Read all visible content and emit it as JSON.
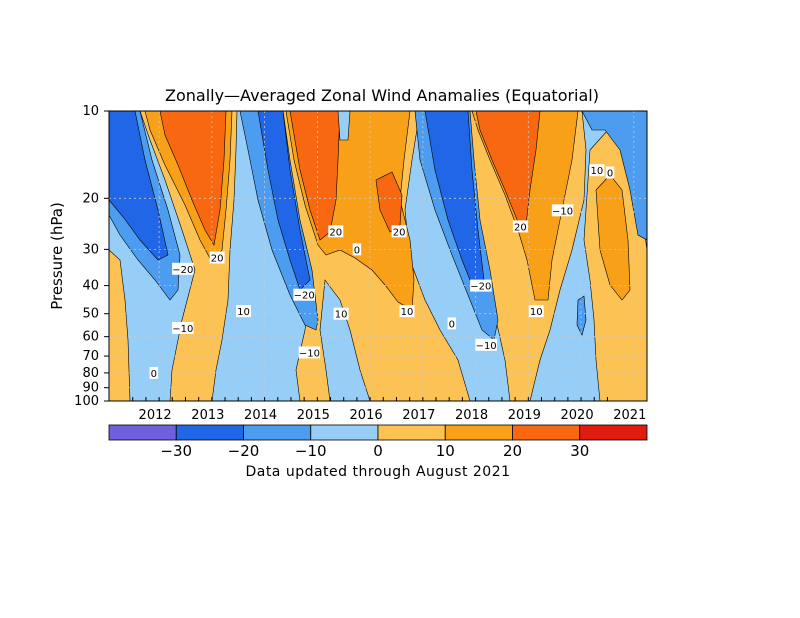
{
  "chart_data": {
    "type": "heatmap",
    "title": "Zonally—Averaged Zonal Wind Anamalies (Equatorial)",
    "ylabel": "Pressure (hPa)",
    "xlabel": "",
    "y_scale": "log",
    "y_reversed": true,
    "ylim": [
      100,
      10
    ],
    "y_ticks": [
      "10",
      "20",
      "30",
      "40",
      "50",
      "60",
      "70",
      "80",
      "90",
      "100"
    ],
    "x_ticks": [
      "2012",
      "2013",
      "2014",
      "2015",
      "2016",
      "2017",
      "2018",
      "2019",
      "2020",
      "2021"
    ],
    "colorbar": {
      "levels": [
        -40,
        -30,
        -20,
        -10,
        0,
        10,
        20,
        30,
        40
      ],
      "tick_labels": [
        "−30",
        "−20",
        "−10",
        "0",
        "10",
        "20",
        "30"
      ],
      "colors": [
        "#7060e0",
        "#2266e8",
        "#4c9cf0",
        "#96cef8",
        "#fcc354",
        "#f8a018",
        "#f86810",
        "#e01c10"
      ]
    },
    "contour_labels": [
      {
        "text": "−20",
        "year": 2012.95,
        "p": 35
      },
      {
        "text": "−10",
        "year": 2012.95,
        "p": 56
      },
      {
        "text": "0",
        "year": 2012.4,
        "p": 80
      },
      {
        "text": "20",
        "year": 2013.6,
        "p": 32
      },
      {
        "text": "10",
        "year": 2014.1,
        "p": 49
      },
      {
        "text": "−20",
        "year": 2015.25,
        "p": 43
      },
      {
        "text": "−10",
        "year": 2015.35,
        "p": 68
      },
      {
        "text": "20",
        "year": 2015.85,
        "p": 26
      },
      {
        "text": "10",
        "year": 2015.95,
        "p": 50
      },
      {
        "text": "0",
        "year": 2016.25,
        "p": 30
      },
      {
        "text": "20",
        "year": 2017.05,
        "p": 26
      },
      {
        "text": "10",
        "year": 2017.2,
        "p": 49
      },
      {
        "text": "0",
        "year": 2018.05,
        "p": 54
      },
      {
        "text": "−20",
        "year": 2018.6,
        "p": 40
      },
      {
        "text": "−10",
        "year": 2018.7,
        "p": 64
      },
      {
        "text": "20",
        "year": 2019.35,
        "p": 25
      },
      {
        "text": "10",
        "year": 2019.65,
        "p": 49
      },
      {
        "text": "−10",
        "year": 2020.15,
        "p": 22
      },
      {
        "text": "10",
        "year": 2020.8,
        "p": 16
      },
      {
        "text": "0",
        "year": 2021.05,
        "p": 16.3
      }
    ]
  },
  "footnote": "Data updated through August 2021",
  "colors": {
    "gridline": "#c8c8c8",
    "contour_line": "#000000"
  }
}
